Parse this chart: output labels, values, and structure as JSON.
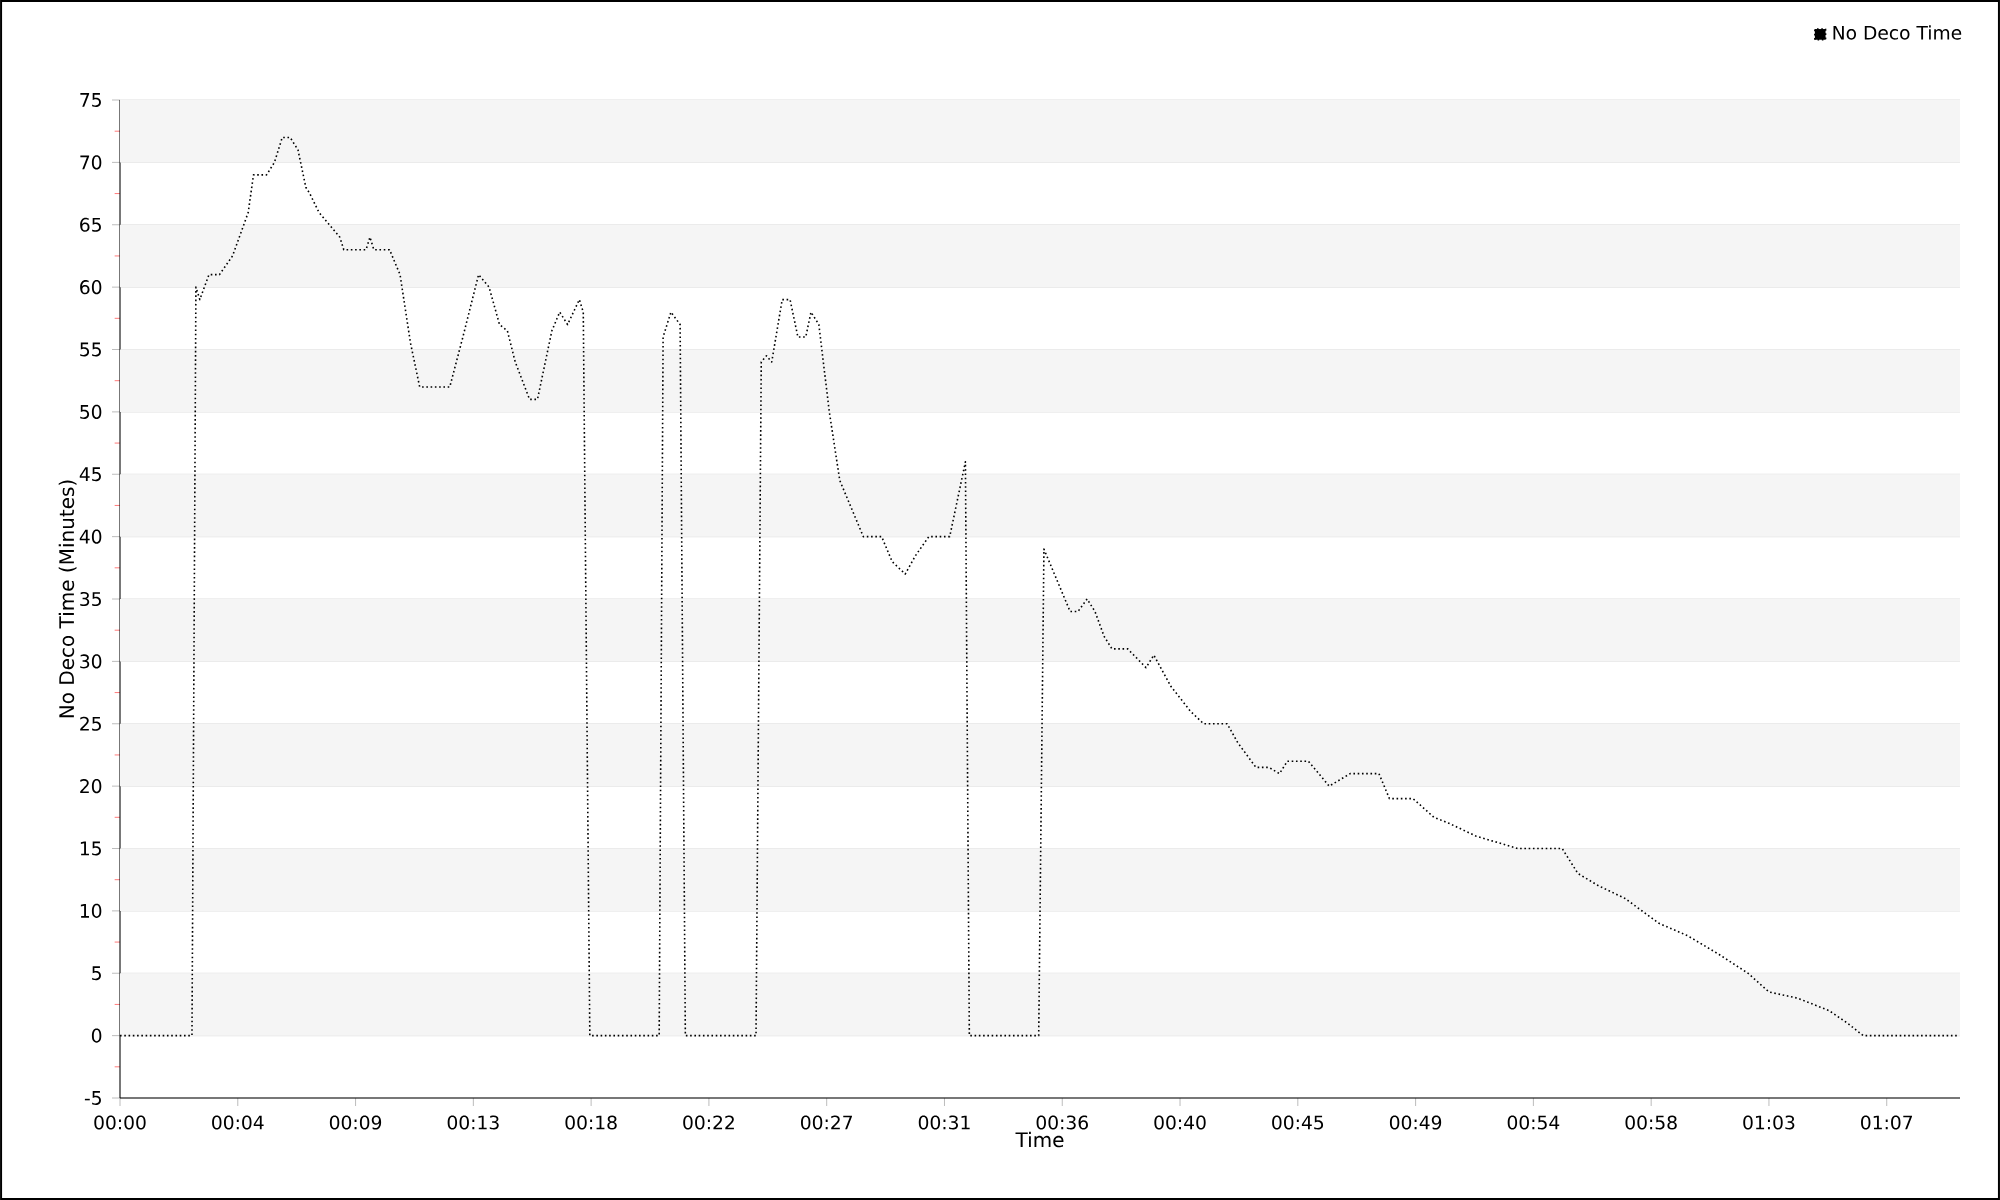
{
  "chart_data": {
    "type": "line",
    "xlabel": "Time",
    "ylabel": "No Deco Time (Minutes)",
    "xlim": [
      0,
      70.3
    ],
    "ylim": [
      -5,
      75
    ],
    "xticks": [
      {
        "value": 0,
        "label": "00:00"
      },
      {
        "value": 4.5,
        "label": "00:04"
      },
      {
        "value": 9,
        "label": "00:09"
      },
      {
        "value": 13.5,
        "label": "00:13"
      },
      {
        "value": 18,
        "label": "00:18"
      },
      {
        "value": 22.5,
        "label": "00:22"
      },
      {
        "value": 27,
        "label": "00:27"
      },
      {
        "value": 31.5,
        "label": "00:31"
      },
      {
        "value": 36,
        "label": "00:36"
      },
      {
        "value": 40.5,
        "label": "00:40"
      },
      {
        "value": 45,
        "label": "00:45"
      },
      {
        "value": 49.5,
        "label": "00:49"
      },
      {
        "value": 54,
        "label": "00:54"
      },
      {
        "value": 58.5,
        "label": "00:58"
      },
      {
        "value": 63,
        "label": "01:03"
      },
      {
        "value": 67.5,
        "label": "01:07"
      }
    ],
    "yticks": [
      -5,
      0,
      5,
      10,
      15,
      20,
      25,
      30,
      35,
      40,
      45,
      50,
      55,
      60,
      65,
      70,
      75
    ],
    "grid": "y",
    "legend": "top right",
    "marker": "none",
    "line_style": "dotted",
    "series": [
      {
        "name": "No Deco Time",
        "color": "#000000",
        "x": [
          0,
          2.75,
          2.9,
          3.05,
          3.4,
          3.8,
          4.3,
          4.9,
          5.1,
          5.6,
          5.9,
          6.2,
          6.5,
          6.8,
          7.1,
          7.25,
          7.6,
          8.4,
          8.55,
          9.4,
          9.55,
          9.7,
          10.3,
          10.7,
          11.1,
          11.45,
          12.6,
          13.1,
          13.7,
          14.1,
          14.5,
          14.8,
          15.1,
          15.65,
          15.95,
          16.5,
          16.8,
          17.1,
          17.55,
          17.7,
          17.95,
          20.6,
          20.75,
          21.05,
          21.4,
          21.6,
          24.3,
          24.5,
          24.7,
          24.9,
          25.3,
          25.6,
          25.9,
          26.2,
          26.4,
          26.7,
          27.1,
          27.5,
          28.4,
          29.1,
          29.5,
          30.0,
          30.4,
          30.9,
          31.7,
          32.3,
          32.45,
          35.1,
          35.3,
          35.6,
          36.3,
          36.6,
          36.95,
          37.25,
          37.6,
          37.9,
          38.5,
          39.2,
          39.5,
          40.15,
          40.9,
          41.4,
          42.3,
          42.7,
          43.4,
          43.9,
          44.3,
          44.6,
          45.4,
          46.2,
          46.6,
          47.0,
          48.1,
          48.5,
          49.4,
          50.2,
          50.8,
          51.8,
          53.4,
          55.1,
          55.7,
          56.5,
          57.5,
          58.8,
          59.9,
          61.1,
          62.2,
          63.0,
          64.1,
          65.3,
          66.0,
          66.6,
          70.2
        ],
        "values": [
          0,
          0,
          60,
          59,
          61,
          61,
          62.5,
          66,
          69,
          69,
          70,
          72,
          72,
          71,
          68,
          67.5,
          66,
          64,
          63,
          63,
          64,
          63,
          63,
          61,
          55.5,
          52,
          52,
          56,
          61,
          60,
          57,
          56.5,
          54,
          51,
          51,
          56.5,
          58,
          57,
          59,
          58,
          0,
          0,
          56,
          58,
          57,
          0,
          0,
          54,
          54.5,
          54,
          59,
          59,
          56,
          56,
          58,
          57,
          50,
          44.5,
          40,
          40,
          38,
          37,
          38.5,
          40,
          40,
          46,
          0,
          0,
          39,
          37.5,
          34,
          34,
          35,
          34,
          32,
          31,
          31,
          29.5,
          30.5,
          28,
          26,
          25,
          25,
          23.5,
          21.5,
          21.5,
          21,
          22,
          22,
          20,
          20.5,
          21,
          21,
          19,
          19,
          17.5,
          17,
          16,
          15,
          15,
          13,
          12,
          11,
          9,
          8,
          6.5,
          5,
          3.5,
          3,
          2,
          1,
          0,
          0
        ]
      }
    ]
  }
}
